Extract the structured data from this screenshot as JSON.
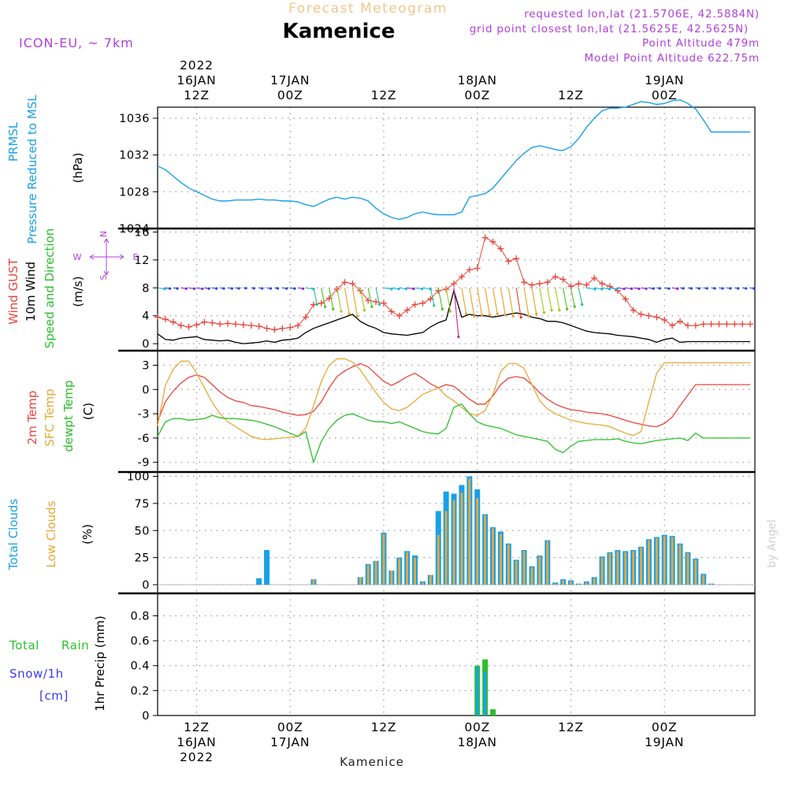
{
  "header": {
    "product": "Forecast Meteogram",
    "location": "Kamenice",
    "model": "ICON-EU, ~ 7km",
    "requested": "requested lon,lat (21.5706E, 42.5884N)",
    "grid_point": "grid point closest lon,lat (21.5625E, 42.5625N)",
    "point_altitude": "Point Altitude 479m",
    "model_altitude": "Model Point Altitude 622.75m",
    "footer_location": "Kamenice",
    "credit": "by Angel"
  },
  "colors": {
    "title_orange": "#f5c58a",
    "purple": "#b040d8",
    "blue": "#1aa0e8",
    "red": "#e8453c",
    "black": "#000000",
    "green": "#2bc02b",
    "orange": "#e8a838",
    "grid": "#9a9a9a",
    "snow": "#3a3af0"
  },
  "time_axis": {
    "top_labels": [
      {
        "t": 12,
        "lines": [
          "2022",
          "16JAN",
          "12Z"
        ]
      },
      {
        "t": 24,
        "lines": [
          "17JAN",
          "00Z"
        ]
      },
      {
        "t": 36,
        "lines": [
          "12Z"
        ]
      },
      {
        "t": 48,
        "lines": [
          "18JAN",
          "00Z"
        ]
      },
      {
        "t": 60,
        "lines": [
          "12Z"
        ]
      },
      {
        "t": 72,
        "lines": [
          "19JAN",
          "00Z"
        ]
      }
    ],
    "bottom_labels": [
      {
        "t": 12,
        "lines": [
          "12Z",
          "16JAN",
          "2022"
        ]
      },
      {
        "t": 24,
        "lines": [
          "00Z",
          "17JAN"
        ]
      },
      {
        "t": 36,
        "lines": [
          "12Z"
        ]
      },
      {
        "t": 48,
        "lines": [
          "00Z",
          "18JAN"
        ]
      },
      {
        "t": 60,
        "lines": [
          "12Z"
        ]
      },
      {
        "t": 72,
        "lines": [
          "00Z",
          "19JAN"
        ]
      }
    ]
  },
  "chart_data": [
    {
      "type": "line",
      "panel": "pressure",
      "labels": [
        "PRMSL",
        "Pressure Reduced to MSL",
        "(hPa)"
      ],
      "yticks": [
        "1024",
        "1028",
        "1032",
        "1036"
      ],
      "ylim": [
        1024,
        1037.2
      ],
      "x": [
        7,
        8,
        9,
        10,
        11,
        12,
        13,
        14,
        15,
        16,
        17,
        18,
        19,
        20,
        21,
        22,
        23,
        24,
        25,
        26,
        27,
        28,
        29,
        30,
        31,
        32,
        33,
        34,
        35,
        36,
        37,
        38,
        39,
        40,
        41,
        42,
        43,
        44,
        45,
        46,
        47,
        48,
        49,
        50,
        51,
        52,
        53,
        54,
        55,
        56,
        57,
        58,
        58.5,
        59,
        60,
        61,
        62,
        63,
        64,
        65,
        66,
        67,
        68,
        69,
        70,
        71,
        72,
        73,
        74,
        75,
        76,
        77,
        78,
        79,
        80,
        81,
        82,
        83
      ],
      "series": [
        {
          "name": "PRMSL",
          "color": "#1aa0e8",
          "values": [
            1030.8,
            1030.4,
            1029.7,
            1029.0,
            1028.4,
            1028.0,
            1027.6,
            1027.2,
            1027.0,
            1027.0,
            1027.1,
            1027.1,
            1027.1,
            1027.2,
            1027.1,
            1027.1,
            1027.0,
            1027.0,
            1026.9,
            1026.6,
            1026.4,
            1026.8,
            1027.2,
            1027.4,
            1027.2,
            1027.4,
            1027.3,
            1027.0,
            1026.2,
            1025.6,
            1025.2,
            1025.0,
            1025.2,
            1025.6,
            1025.8,
            1025.6,
            1025.5,
            1025.5,
            1025.5,
            1025.8,
            1027.4,
            1027.6,
            1027.8,
            1028.4,
            1029.4,
            1030.4,
            1031.4,
            1032.2,
            1032.8,
            1033.0,
            1032.8,
            1032.6,
            1032.5,
            1032.5,
            1032.9,
            1033.8,
            1035.0,
            1036.0,
            1036.8,
            1037.1,
            1037.1,
            1037.2,
            1037.5,
            1037.8,
            1037.7,
            1037.5,
            1037.6,
            1037.9,
            1038.0,
            1037.6,
            1037.0,
            1035.8,
            1034.5,
            1034.5,
            1034.5,
            1034.5,
            1034.5,
            1034.5
          ]
        }
      ]
    },
    {
      "type": "line",
      "panel": "wind",
      "labels": [
        "Wind GUST",
        "10m Wind",
        "Speed and Direction",
        "(m/s)"
      ],
      "compass": {
        "n": "N",
        "s": "S",
        "w": "W",
        "e": "E"
      },
      "yticks": [
        "0",
        "4",
        "8",
        "12",
        "16"
      ],
      "ylim": [
        -1,
        16.5
      ],
      "x": [
        7,
        8,
        9,
        10,
        11,
        12,
        13,
        14,
        15,
        16,
        17,
        18,
        19,
        20,
        21,
        22,
        23,
        24,
        25,
        26,
        27,
        28,
        29,
        30,
        31,
        32,
        33,
        34,
        35,
        36,
        37,
        38,
        39,
        40,
        41,
        42,
        43,
        44,
        45,
        46,
        47,
        48,
        49,
        50,
        51,
        52,
        53,
        54,
        55,
        56,
        57,
        58,
        59,
        60,
        61,
        62,
        63,
        64,
        65,
        66,
        67,
        68,
        69,
        70,
        71,
        72,
        73,
        74,
        75,
        76,
        77,
        78,
        79,
        80,
        81,
        82,
        83
      ],
      "series": [
        {
          "name": "Wind GUST",
          "color": "#e8453c",
          "values": [
            3.8,
            3.5,
            3.1,
            2.6,
            2.4,
            2.7,
            3.1,
            3.0,
            2.8,
            2.9,
            2.8,
            2.7,
            2.6,
            2.5,
            2.2,
            2.0,
            2.2,
            2.3,
            2.6,
            3.8,
            5.6,
            5.8,
            6.5,
            7.8,
            8.8,
            8.6,
            7.6,
            6.2,
            6.0,
            5.8,
            4.6,
            4.0,
            4.8,
            5.6,
            5.8,
            6.4,
            7.6,
            7.8,
            8.6,
            9.6,
            10.6,
            10.8,
            15.2,
            14.6,
            13.6,
            11.8,
            12.2,
            8.8,
            8.4,
            8.6,
            8.8,
            9.6,
            9.2,
            8.2,
            8.6,
            8.4,
            9.4,
            8.6,
            8.2,
            7.6,
            6.4,
            4.8,
            4.2,
            4.0,
            3.8,
            3.4,
            2.6,
            3.2,
            2.6,
            2.6,
            2.8,
            2.8,
            2.8,
            2.8,
            2.8,
            2.8,
            2.8
          ]
        },
        {
          "name": "10m Wind",
          "color": "#000000",
          "values": [
            1.4,
            0.6,
            0.5,
            0.8,
            0.9,
            1.0,
            0.6,
            0.5,
            0.4,
            0.5,
            0.2,
            0.0,
            0.1,
            0.2,
            0.4,
            0.2,
            0.5,
            0.6,
            0.8,
            1.6,
            2.2,
            2.6,
            3.0,
            3.4,
            3.8,
            4.2,
            3.2,
            2.6,
            2.2,
            1.6,
            1.4,
            1.3,
            1.2,
            1.4,
            1.6,
            2.4,
            3.0,
            3.4,
            7.6,
            3.8,
            4.2,
            4.0,
            4.0,
            3.8,
            4.0,
            4.2,
            4.4,
            4.2,
            3.8,
            3.6,
            3.2,
            3.2,
            3.0,
            2.6,
            2.2,
            1.8,
            1.6,
            1.5,
            1.4,
            1.2,
            1.1,
            1.0,
            0.8,
            0.6,
            0.2,
            0.6,
            0.8,
            0.2,
            0.3,
            0.3,
            0.3,
            0.3,
            0.3,
            0.3,
            0.3,
            0.3,
            0.3
          ]
        }
      ]
    },
    {
      "type": "line",
      "panel": "temperature",
      "labels": [
        "2m Temp",
        "SFC Temp",
        "dewpt Temp",
        "(C)"
      ],
      "yticks": [
        "-9",
        "-6",
        "-3",
        "0",
        "3"
      ],
      "ylim": [
        -10.2,
        4.8
      ],
      "x": [
        7,
        8,
        9,
        10,
        11,
        12,
        13,
        14,
        15,
        16,
        17,
        18,
        19,
        20,
        21,
        22,
        23,
        24,
        25,
        26,
        27,
        28,
        29,
        30,
        31,
        32,
        33,
        34,
        35,
        36,
        37,
        38,
        39,
        40,
        41,
        42,
        43,
        44,
        45,
        46,
        47,
        48,
        49,
        50,
        51,
        52,
        53,
        54,
        55,
        56,
        57,
        58,
        59,
        60,
        61,
        62,
        63,
        64,
        65,
        66,
        67,
        68,
        69,
        70,
        71,
        72,
        73,
        74,
        75,
        76,
        77,
        78,
        79,
        80,
        81,
        82,
        83
      ],
      "series": [
        {
          "name": "2m Temp",
          "color": "#e8453c",
          "values": [
            -4.0,
            -1.5,
            -0.2,
            0.8,
            1.5,
            1.8,
            1.5,
            0.6,
            -0.3,
            -1.0,
            -1.4,
            -1.6,
            -2.0,
            -2.1,
            -2.3,
            -2.5,
            -2.8,
            -3.0,
            -3.2,
            -3.1,
            -2.7,
            -1.5,
            0.2,
            1.6,
            2.3,
            2.8,
            3.2,
            2.8,
            1.9,
            1.0,
            0.5,
            1.0,
            1.6,
            2.0,
            1.4,
            0.7,
            0.2,
            0.6,
            0.4,
            -0.4,
            -1.2,
            -1.8,
            -1.8,
            -0.8,
            0.6,
            1.4,
            1.6,
            1.4,
            0.6,
            -0.4,
            -1.2,
            -1.8,
            -2.2,
            -2.5,
            -2.6,
            -2.8,
            -2.9,
            -3.0,
            -3.2,
            -3.5,
            -3.8,
            -4.1,
            -4.3,
            -4.5,
            -4.6,
            -4.2,
            -3.4,
            -2.0,
            -0.7,
            0.6,
            0.6,
            0.6,
            0.6,
            0.6,
            0.6,
            0.6,
            0.6
          ]
        },
        {
          "name": "SFC Temp",
          "color": "#e8a838",
          "values": [
            -4.5,
            0.5,
            2.5,
            3.5,
            3.5,
            2.0,
            0.2,
            -1.6,
            -3.0,
            -4.0,
            -4.6,
            -5.2,
            -5.8,
            -6.1,
            -6.2,
            -6.1,
            -6.0,
            -5.9,
            -5.8,
            -4.8,
            -2.0,
            1.0,
            3.0,
            3.8,
            3.8,
            3.4,
            2.4,
            1.0,
            -0.4,
            -1.6,
            -2.4,
            -2.6,
            -2.2,
            -1.4,
            -0.6,
            -0.2,
            0.2,
            -0.8,
            -1.4,
            -2.2,
            -3.0,
            -3.2,
            -2.6,
            -0.6,
            2.2,
            3.2,
            3.2,
            2.6,
            0.6,
            -1.4,
            -2.4,
            -3.0,
            -3.4,
            -3.8,
            -4.0,
            -4.2,
            -4.3,
            -4.4,
            -4.6,
            -5.0,
            -5.4,
            -5.7,
            -5.2,
            -1.5,
            2.0,
            3.3,
            3.3,
            3.3,
            3.3,
            3.3,
            3.3,
            3.3,
            3.3,
            3.3,
            3.3,
            3.3,
            3.3
          ]
        },
        {
          "name": "dewpt Temp",
          "color": "#2bc02b",
          "values": [
            -5.8,
            -4.0,
            -3.6,
            -3.6,
            -3.8,
            -3.7,
            -3.6,
            -3.2,
            -3.5,
            -3.6,
            -3.6,
            -3.7,
            -3.8,
            -4.0,
            -4.3,
            -4.6,
            -5.0,
            -5.4,
            -5.8,
            -5.2,
            -9.0,
            -6.4,
            -4.8,
            -3.8,
            -3.2,
            -3.0,
            -3.4,
            -3.8,
            -4.0,
            -4.0,
            -4.2,
            -4.0,
            -4.4,
            -4.8,
            -5.2,
            -5.4,
            -5.5,
            -4.8,
            -2.2,
            -1.8,
            -3.0,
            -4.0,
            -4.4,
            -4.6,
            -4.8,
            -5.2,
            -5.6,
            -5.8,
            -6.0,
            -6.2,
            -6.4,
            -7.4,
            -7.8,
            -7.0,
            -6.4,
            -6.3,
            -6.2,
            -6.2,
            -6.2,
            -6.1,
            -6.4,
            -6.6,
            -6.7,
            -6.5,
            -6.3,
            -6.2,
            -6.1,
            -6.0,
            -6.3,
            -5.4,
            -6.0,
            -6.0,
            -6.0,
            -6.0,
            -6.0,
            -6.0,
            -6.0
          ]
        }
      ]
    },
    {
      "type": "bar",
      "panel": "clouds",
      "labels": [
        "Total Clouds",
        "Low Clouds",
        "(%)"
      ],
      "yticks": [
        "0",
        "25",
        "50",
        "75",
        "100"
      ],
      "ylim": [
        -8,
        104
      ],
      "x": [
        7,
        8,
        9,
        10,
        11,
        12,
        13,
        14,
        15,
        16,
        17,
        18,
        19,
        20,
        21,
        22,
        23,
        24,
        25,
        26,
        27,
        28,
        29,
        30,
        31,
        32,
        33,
        34,
        35,
        36,
        37,
        38,
        39,
        40,
        41,
        42,
        43,
        44,
        45,
        46,
        47,
        48,
        49,
        50,
        51,
        52,
        53,
        54,
        55,
        56,
        57,
        58,
        59,
        60,
        61,
        62,
        63,
        64,
        65,
        66,
        67,
        68,
        69,
        70,
        71,
        72,
        73,
        74,
        75,
        76,
        77,
        78,
        79,
        80,
        81,
        82,
        83
      ],
      "series": [
        {
          "name": "Total Clouds",
          "color": "#1aa0e8",
          "values": [
            0,
            0,
            0,
            0,
            0,
            0,
            0,
            0,
            0,
            0,
            0,
            0,
            0,
            6,
            32,
            0,
            0,
            0,
            0,
            0,
            5,
            0,
            0,
            0,
            0,
            0,
            7,
            19,
            22,
            48,
            13,
            25,
            31,
            27,
            3,
            9,
            68,
            86,
            84,
            92,
            100,
            88,
            65,
            53,
            49,
            38,
            23,
            32,
            17,
            27,
            41,
            2,
            5,
            4,
            1,
            3,
            7,
            26,
            30,
            32,
            31,
            32,
            35,
            42,
            44,
            46,
            45,
            38,
            30,
            24,
            10,
            1,
            0,
            0,
            0,
            0,
            0
          ]
        },
        {
          "name": "Low Clouds",
          "color": "#e8a838",
          "values": [
            0,
            0,
            0,
            0,
            0,
            0,
            0,
            0,
            0,
            0,
            0,
            0,
            0,
            0,
            0,
            0,
            0,
            0,
            0,
            0,
            5,
            0,
            0,
            0,
            0,
            0,
            7,
            18,
            22,
            47,
            13,
            24,
            30,
            25,
            2,
            9,
            46,
            68,
            78,
            85,
            98,
            80,
            64,
            52,
            47,
            37,
            22,
            31,
            16,
            26,
            40,
            1,
            4,
            3,
            1,
            2,
            6,
            25,
            29,
            31,
            30,
            31,
            34,
            41,
            43,
            45,
            44,
            37,
            29,
            23,
            9,
            1,
            0,
            0,
            0,
            0,
            0
          ]
        }
      ]
    },
    {
      "type": "bar",
      "panel": "precip",
      "labels": [
        "Total",
        "Rain",
        "Snow/1h",
        "[cm]",
        "1hr Precip (mm)"
      ],
      "yticks": [
        "0",
        "0.2",
        "0.4",
        "0.6",
        "0.8"
      ],
      "ylim": [
        0,
        0.98
      ],
      "x": [
        48,
        49,
        50
      ],
      "series": [
        {
          "name": "Total",
          "color": "#2bc02b",
          "values": [
            0.4,
            0.45,
            0.05
          ]
        },
        {
          "name": "Rain",
          "color": "#1aa0e8",
          "values": [
            0.39,
            0.35,
            0.0
          ]
        }
      ]
    }
  ]
}
